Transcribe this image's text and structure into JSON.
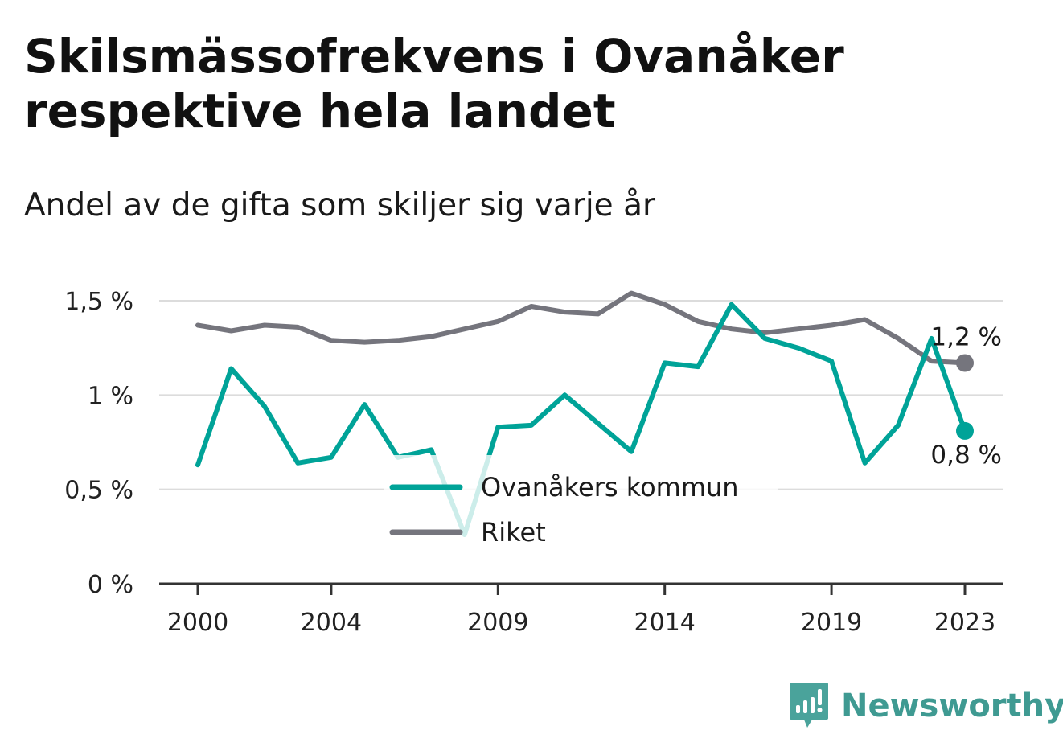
{
  "title": "Skilsmässofrekvens i Ovanåker respektive hela landet",
  "subtitle": "Andel av de gifta som skiljer sig varje år",
  "brand": {
    "name": "Newsworthy",
    "icon": "bar-chart-speech-bubble-icon",
    "color": "#3f9a92"
  },
  "chart_data": {
    "type": "line",
    "title": "Skilsmässofrekvens i Ovanåker respektive hela landet",
    "subtitle": "Andel av de gifta som skiljer sig varje år",
    "x": [
      2000,
      2001,
      2002,
      2003,
      2004,
      2005,
      2006,
      2007,
      2008,
      2009,
      2010,
      2011,
      2012,
      2013,
      2014,
      2015,
      2016,
      2017,
      2018,
      2019,
      2020,
      2021,
      2022,
      2023
    ],
    "x_ticks": [
      "2000",
      "2004",
      "2009",
      "2014",
      "2019",
      "2023"
    ],
    "y_ticks": [
      "0 %",
      "0,5 %",
      "1 %",
      "1,5 %"
    ],
    "ylim": [
      0,
      1.5
    ],
    "grid": true,
    "legend_position": "bottom-center",
    "series": [
      {
        "name": "Ovanåkers kommun",
        "color": "#00a398",
        "values": [
          0.63,
          1.14,
          0.94,
          0.64,
          0.67,
          0.95,
          0.67,
          0.71,
          0.26,
          0.83,
          0.84,
          1.0,
          0.85,
          0.7,
          1.17,
          1.15,
          1.48,
          1.3,
          1.25,
          1.18,
          0.64,
          0.84,
          1.3,
          0.81
        ],
        "end_label": "0,8 %"
      },
      {
        "name": "Riket",
        "color": "#75757d",
        "values": [
          1.37,
          1.34,
          1.37,
          1.36,
          1.29,
          1.28,
          1.29,
          1.31,
          1.35,
          1.39,
          1.47,
          1.44,
          1.43,
          1.54,
          1.48,
          1.39,
          1.35,
          1.33,
          1.35,
          1.37,
          1.4,
          1.3,
          1.18,
          1.17
        ],
        "end_label": "1,2 %"
      }
    ]
  }
}
